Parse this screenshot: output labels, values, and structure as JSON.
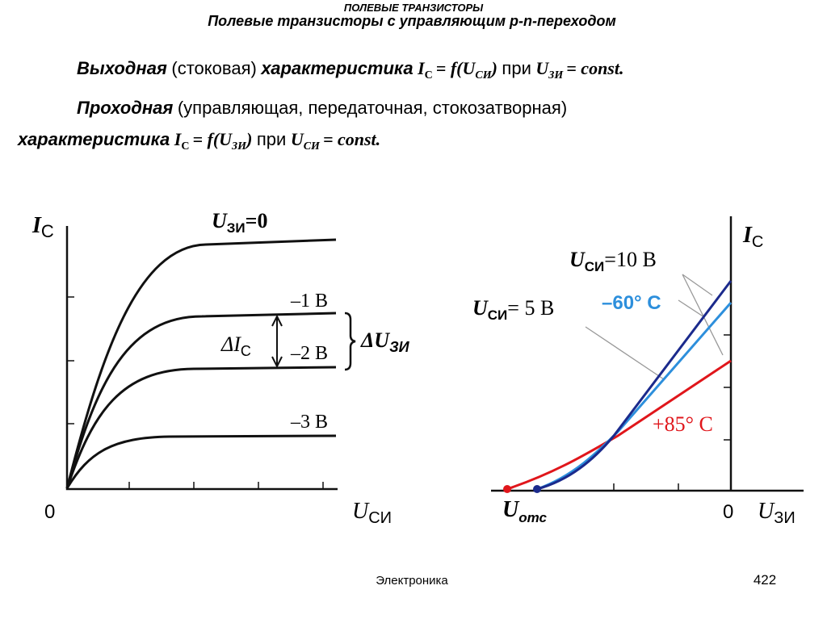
{
  "header": {
    "topic": "ПОЛЕВЫЕ ТРАНЗИСТОРЫ",
    "title": "Полевые транзисторы с управляющим p-n-переходом"
  },
  "output_characteristic": [
    "Выходная",
    "(стоковая)",
    "характеристика",
    "I",
    "C",
    "= f(U",
    "СИ",
    ")",
    "при",
    "U",
    "ЗИ",
    "= const."
  ],
  "transfer_characteristic": {
    "line1": [
      "Проходная",
      "(управляющая, передаточная, стокозатворная)"
    ],
    "line2": [
      "характеристика",
      "I",
      "C",
      "= f(U",
      "ЗИ",
      ")",
      "при",
      "U",
      "СИ",
      "= const."
    ]
  },
  "output_plot": {
    "y_axis": [
      "I",
      "C"
    ],
    "origin": "0",
    "x_axis": [
      "U",
      "СИ"
    ],
    "curve_top": [
      "U",
      "ЗИ",
      "=0"
    ],
    "curves": [
      "–1 В",
      "–2 В",
      "–3 В"
    ],
    "delta_i": [
      "ΔI",
      "C"
    ],
    "delta_u": [
      "ΔU",
      "ЗИ"
    ]
  },
  "transfer_plot": {
    "y_axis": [
      "I",
      "C"
    ],
    "u10": [
      "U",
      "СИ",
      "=10 В"
    ],
    "u5": [
      "U",
      "СИ",
      "= 5 В"
    ],
    "cold": "–60° С",
    "hot": "+85° С",
    "cutoff": [
      "U",
      "отс"
    ],
    "origin": "0",
    "x_axis": [
      "U",
      "ЗИ"
    ]
  },
  "footer": {
    "subject": "Электроника",
    "page": "422"
  }
}
